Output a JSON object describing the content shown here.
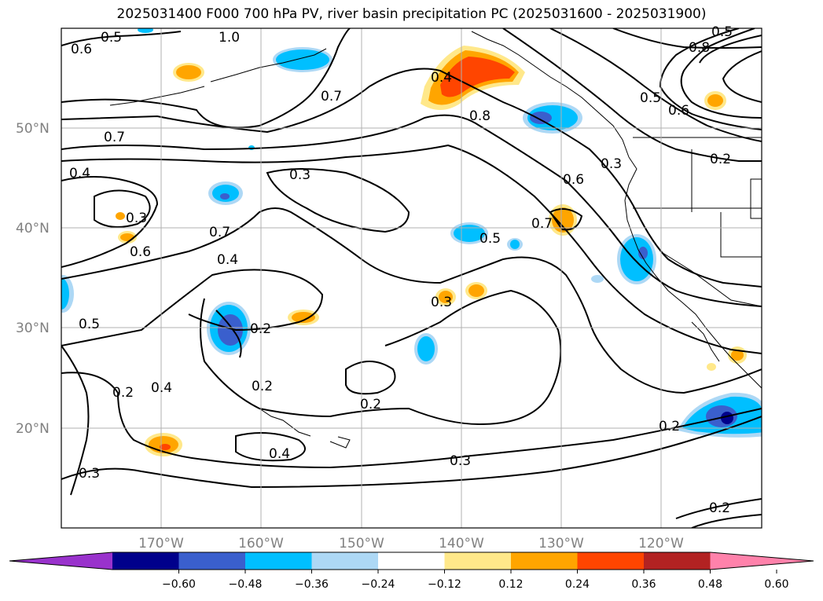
{
  "title": "2025031400 F000 700 hPa PV, river basin precipitation PC (2025031600 - 2025031900)",
  "lat_labels": [
    "50°N",
    "40°N",
    "30°N",
    "20°N"
  ],
  "lon_labels": [
    "170°W",
    "160°W",
    "150°W",
    "140°W",
    "130°W",
    "120°W"
  ],
  "contour_labels": [
    "0.5",
    "1.0",
    "0.6",
    "0.7",
    "0.4",
    "0.3",
    "0.7",
    "0.6",
    "0.4",
    "0.5",
    "0.2",
    "0.3",
    "0.2",
    "0.2",
    "0.4",
    "0.2",
    "0.3",
    "0.3",
    "0.4",
    "0.8",
    "0.5",
    "0.6",
    "0.7",
    "0.3",
    "0.8",
    "0.5",
    "0.6",
    "0.2",
    "0.2",
    "0.2",
    "0.4",
    "0.7",
    "0.3",
    "0.5"
  ],
  "colorbar": {
    "ticks": [
      "−0.60",
      "−0.48",
      "−0.36",
      "−0.24",
      "−0.12",
      "0.12",
      "0.24",
      "0.36",
      "0.48",
      "0.60"
    ],
    "colors": [
      "#9932cc",
      "#00008b",
      "#3a5fcd",
      "#00bfff",
      "#add8f5",
      "#ffffff",
      "#ffe88a",
      "#ffa500",
      "#ff4500",
      "#b22222",
      "#ff82ab"
    ]
  }
}
